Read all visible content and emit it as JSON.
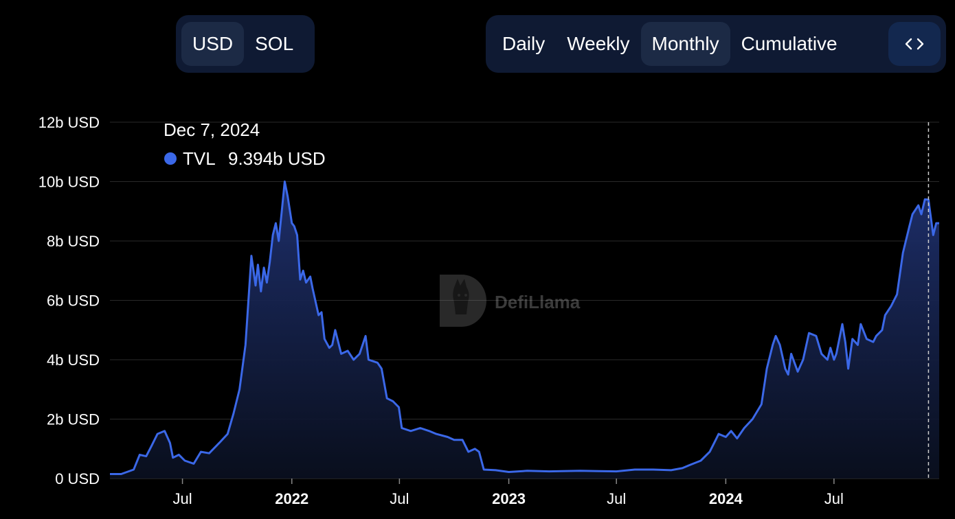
{
  "currency_toggle": {
    "options": [
      {
        "label": "USD",
        "active": true
      },
      {
        "label": "SOL",
        "active": false
      }
    ]
  },
  "period_toggle": {
    "options": [
      {
        "label": "Daily",
        "active": false
      },
      {
        "label": "Weekly",
        "active": false
      },
      {
        "label": "Monthly",
        "active": true
      },
      {
        "label": "Cumulative",
        "active": false
      }
    ],
    "embed_icon": "code-brackets-icon"
  },
  "watermark": "DefiLlama",
  "tooltip": {
    "date": "Dec 7, 2024",
    "series": "TVL",
    "value": "9.394b USD",
    "color": "#3b68e8"
  },
  "colors": {
    "line": "#3b68e8",
    "area_top": "#1f3170",
    "grid": "#2a2a2a",
    "crosshair": "#cccccc"
  },
  "chart_data": {
    "type": "area",
    "series": [
      {
        "name": "TVL",
        "color": "#3b68e8",
        "points": [
          [
            "2021-03-01",
            0.15
          ],
          [
            "2021-03-20",
            0.15
          ],
          [
            "2021-04-10",
            0.3
          ],
          [
            "2021-04-20",
            0.8
          ],
          [
            "2021-05-01",
            0.75
          ],
          [
            "2021-05-10",
            1.1
          ],
          [
            "2021-05-20",
            1.5
          ],
          [
            "2021-06-01",
            1.6
          ],
          [
            "2021-06-10",
            1.2
          ],
          [
            "2021-06-15",
            0.7
          ],
          [
            "2021-06-25",
            0.8
          ],
          [
            "2021-07-05",
            0.6
          ],
          [
            "2021-07-20",
            0.5
          ],
          [
            "2021-08-01",
            0.9
          ],
          [
            "2021-08-15",
            0.85
          ],
          [
            "2021-09-01",
            1.2
          ],
          [
            "2021-09-15",
            1.5
          ],
          [
            "2021-09-25",
            2.2
          ],
          [
            "2021-10-05",
            3.0
          ],
          [
            "2021-10-15",
            4.5
          ],
          [
            "2021-10-20",
            6.0
          ],
          [
            "2021-10-25",
            7.5
          ],
          [
            "2021-11-01",
            6.5
          ],
          [
            "2021-11-05",
            7.2
          ],
          [
            "2021-11-10",
            6.3
          ],
          [
            "2021-11-15",
            7.1
          ],
          [
            "2021-11-20",
            6.6
          ],
          [
            "2021-11-25",
            7.3
          ],
          [
            "2021-11-30",
            8.2
          ],
          [
            "2021-12-05",
            8.6
          ],
          [
            "2021-12-10",
            8.0
          ],
          [
            "2021-12-15",
            9.0
          ],
          [
            "2021-12-20",
            10.0
          ],
          [
            "2021-12-25",
            9.5
          ],
          [
            "2022-01-01",
            8.6
          ],
          [
            "2022-01-05",
            8.5
          ],
          [
            "2022-01-10",
            8.2
          ],
          [
            "2022-01-15",
            6.7
          ],
          [
            "2022-01-20",
            7.0
          ],
          [
            "2022-01-25",
            6.6
          ],
          [
            "2022-02-01",
            6.8
          ],
          [
            "2022-02-05",
            6.4
          ],
          [
            "2022-02-15",
            5.5
          ],
          [
            "2022-02-20",
            5.6
          ],
          [
            "2022-02-25",
            4.7
          ],
          [
            "2022-03-05",
            4.4
          ],
          [
            "2022-03-10",
            4.5
          ],
          [
            "2022-03-15",
            5.0
          ],
          [
            "2022-03-25",
            4.2
          ],
          [
            "2022-04-05",
            4.3
          ],
          [
            "2022-04-15",
            4.0
          ],
          [
            "2022-04-25",
            4.2
          ],
          [
            "2022-05-05",
            4.8
          ],
          [
            "2022-05-10",
            4.0
          ],
          [
            "2022-05-25",
            3.9
          ],
          [
            "2022-06-01",
            3.7
          ],
          [
            "2022-06-10",
            2.7
          ],
          [
            "2022-06-20",
            2.6
          ],
          [
            "2022-06-30",
            2.4
          ],
          [
            "2022-07-05",
            1.7
          ],
          [
            "2022-07-20",
            1.6
          ],
          [
            "2022-08-05",
            1.7
          ],
          [
            "2022-08-20",
            1.6
          ],
          [
            "2022-09-01",
            1.5
          ],
          [
            "2022-09-20",
            1.4
          ],
          [
            "2022-10-01",
            1.3
          ],
          [
            "2022-10-15",
            1.3
          ],
          [
            "2022-10-25",
            0.9
          ],
          [
            "2022-11-05",
            1.0
          ],
          [
            "2022-11-12",
            0.9
          ],
          [
            "2022-11-20",
            0.3
          ],
          [
            "2022-12-10",
            0.28
          ],
          [
            "2023-01-01",
            0.22
          ],
          [
            "2023-02-01",
            0.26
          ],
          [
            "2023-03-10",
            0.24
          ],
          [
            "2023-04-01",
            0.25
          ],
          [
            "2023-05-01",
            0.26
          ],
          [
            "2023-06-01",
            0.25
          ],
          [
            "2023-07-01",
            0.24
          ],
          [
            "2023-08-01",
            0.3
          ],
          [
            "2023-09-01",
            0.3
          ],
          [
            "2023-10-01",
            0.28
          ],
          [
            "2023-10-20",
            0.35
          ],
          [
            "2023-11-01",
            0.45
          ],
          [
            "2023-11-20",
            0.6
          ],
          [
            "2023-12-05",
            0.9
          ],
          [
            "2023-12-15",
            1.3
          ],
          [
            "2023-12-20",
            1.5
          ],
          [
            "2024-01-01",
            1.4
          ],
          [
            "2024-01-10",
            1.6
          ],
          [
            "2024-01-20",
            1.35
          ],
          [
            "2024-02-01",
            1.7
          ],
          [
            "2024-02-15",
            2.0
          ],
          [
            "2024-03-01",
            2.5
          ],
          [
            "2024-03-10",
            3.7
          ],
          [
            "2024-03-20",
            4.5
          ],
          [
            "2024-03-25",
            4.8
          ],
          [
            "2024-04-01",
            4.5
          ],
          [
            "2024-04-10",
            3.7
          ],
          [
            "2024-04-15",
            3.5
          ],
          [
            "2024-04-20",
            4.2
          ],
          [
            "2024-05-01",
            3.6
          ],
          [
            "2024-05-10",
            4.0
          ],
          [
            "2024-05-20",
            4.9
          ],
          [
            "2024-06-01",
            4.8
          ],
          [
            "2024-06-10",
            4.2
          ],
          [
            "2024-06-20",
            4.0
          ],
          [
            "2024-06-25",
            4.4
          ],
          [
            "2024-07-01",
            4.0
          ],
          [
            "2024-07-05",
            4.2
          ],
          [
            "2024-07-15",
            5.2
          ],
          [
            "2024-07-20",
            4.6
          ],
          [
            "2024-07-25",
            3.7
          ],
          [
            "2024-08-01",
            4.7
          ],
          [
            "2024-08-10",
            4.5
          ],
          [
            "2024-08-15",
            5.2
          ],
          [
            "2024-08-25",
            4.7
          ],
          [
            "2024-09-05",
            4.6
          ],
          [
            "2024-09-10",
            4.8
          ],
          [
            "2024-09-20",
            5.0
          ],
          [
            "2024-09-25",
            5.5
          ],
          [
            "2024-10-05",
            5.8
          ],
          [
            "2024-10-15",
            6.2
          ],
          [
            "2024-10-25",
            7.6
          ],
          [
            "2024-11-05",
            8.5
          ],
          [
            "2024-11-10",
            8.9
          ],
          [
            "2024-11-20",
            9.2
          ],
          [
            "2024-11-25",
            8.9
          ],
          [
            "2024-12-01",
            9.4
          ],
          [
            "2024-12-07",
            9.39
          ],
          [
            "2024-12-15",
            8.2
          ],
          [
            "2024-12-20",
            8.6
          ],
          [
            "2024-12-25",
            8.6
          ]
        ]
      }
    ],
    "y_ticks": [
      "0 USD",
      "2b USD",
      "4b USD",
      "6b USD",
      "8b USD",
      "10b USD",
      "12b USD"
    ],
    "ylim": [
      0,
      12
    ],
    "x_ticks": [
      {
        "date": "2021-07-01",
        "label": "Jul",
        "bold": false
      },
      {
        "date": "2022-01-01",
        "label": "2022",
        "bold": true
      },
      {
        "date": "2022-07-01",
        "label": "Jul",
        "bold": false
      },
      {
        "date": "2023-01-01",
        "label": "2023",
        "bold": true
      },
      {
        "date": "2023-07-01",
        "label": "Jul",
        "bold": false
      },
      {
        "date": "2024-01-01",
        "label": "2024",
        "bold": true
      },
      {
        "date": "2024-07-01",
        "label": "Jul",
        "bold": false
      }
    ],
    "xlim": [
      "2021-03-01",
      "2024-12-25"
    ],
    "crosshair_date": "2024-12-07",
    "grid": true
  }
}
